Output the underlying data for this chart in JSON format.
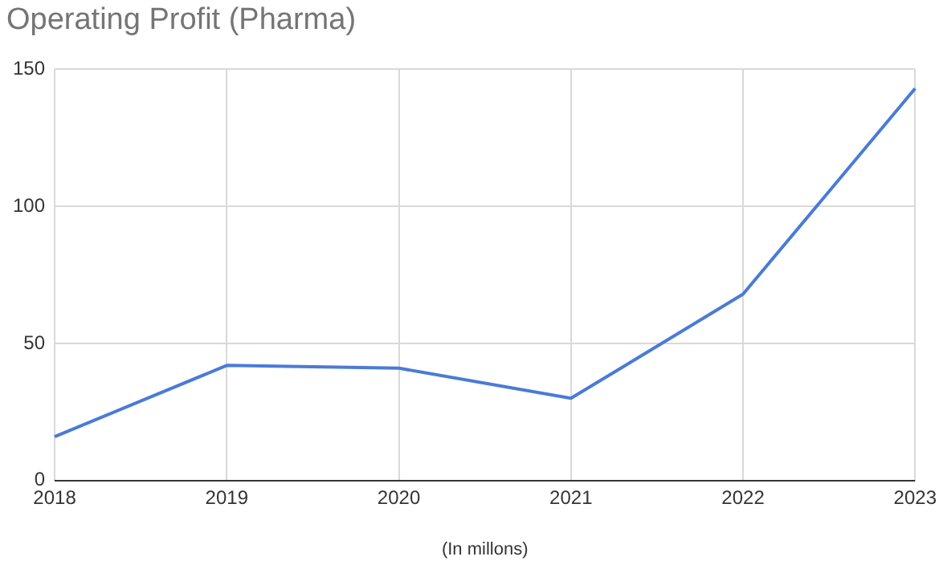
{
  "chart_data": {
    "type": "line",
    "title": "Operating Profit (Pharma)",
    "xlabel": "(In millons)",
    "categories": [
      "2018",
      "2019",
      "2020",
      "2021",
      "2022",
      "2023"
    ],
    "series": [
      {
        "color": "#4a7bd6",
        "values": [
          16,
          42,
          41,
          30,
          68,
          143
        ]
      }
    ],
    "ylim": [
      0,
      150
    ],
    "yticks": [
      0,
      50,
      100,
      150
    ],
    "grid": true,
    "legend": false,
    "marker": "none",
    "line_style": "solid"
  }
}
